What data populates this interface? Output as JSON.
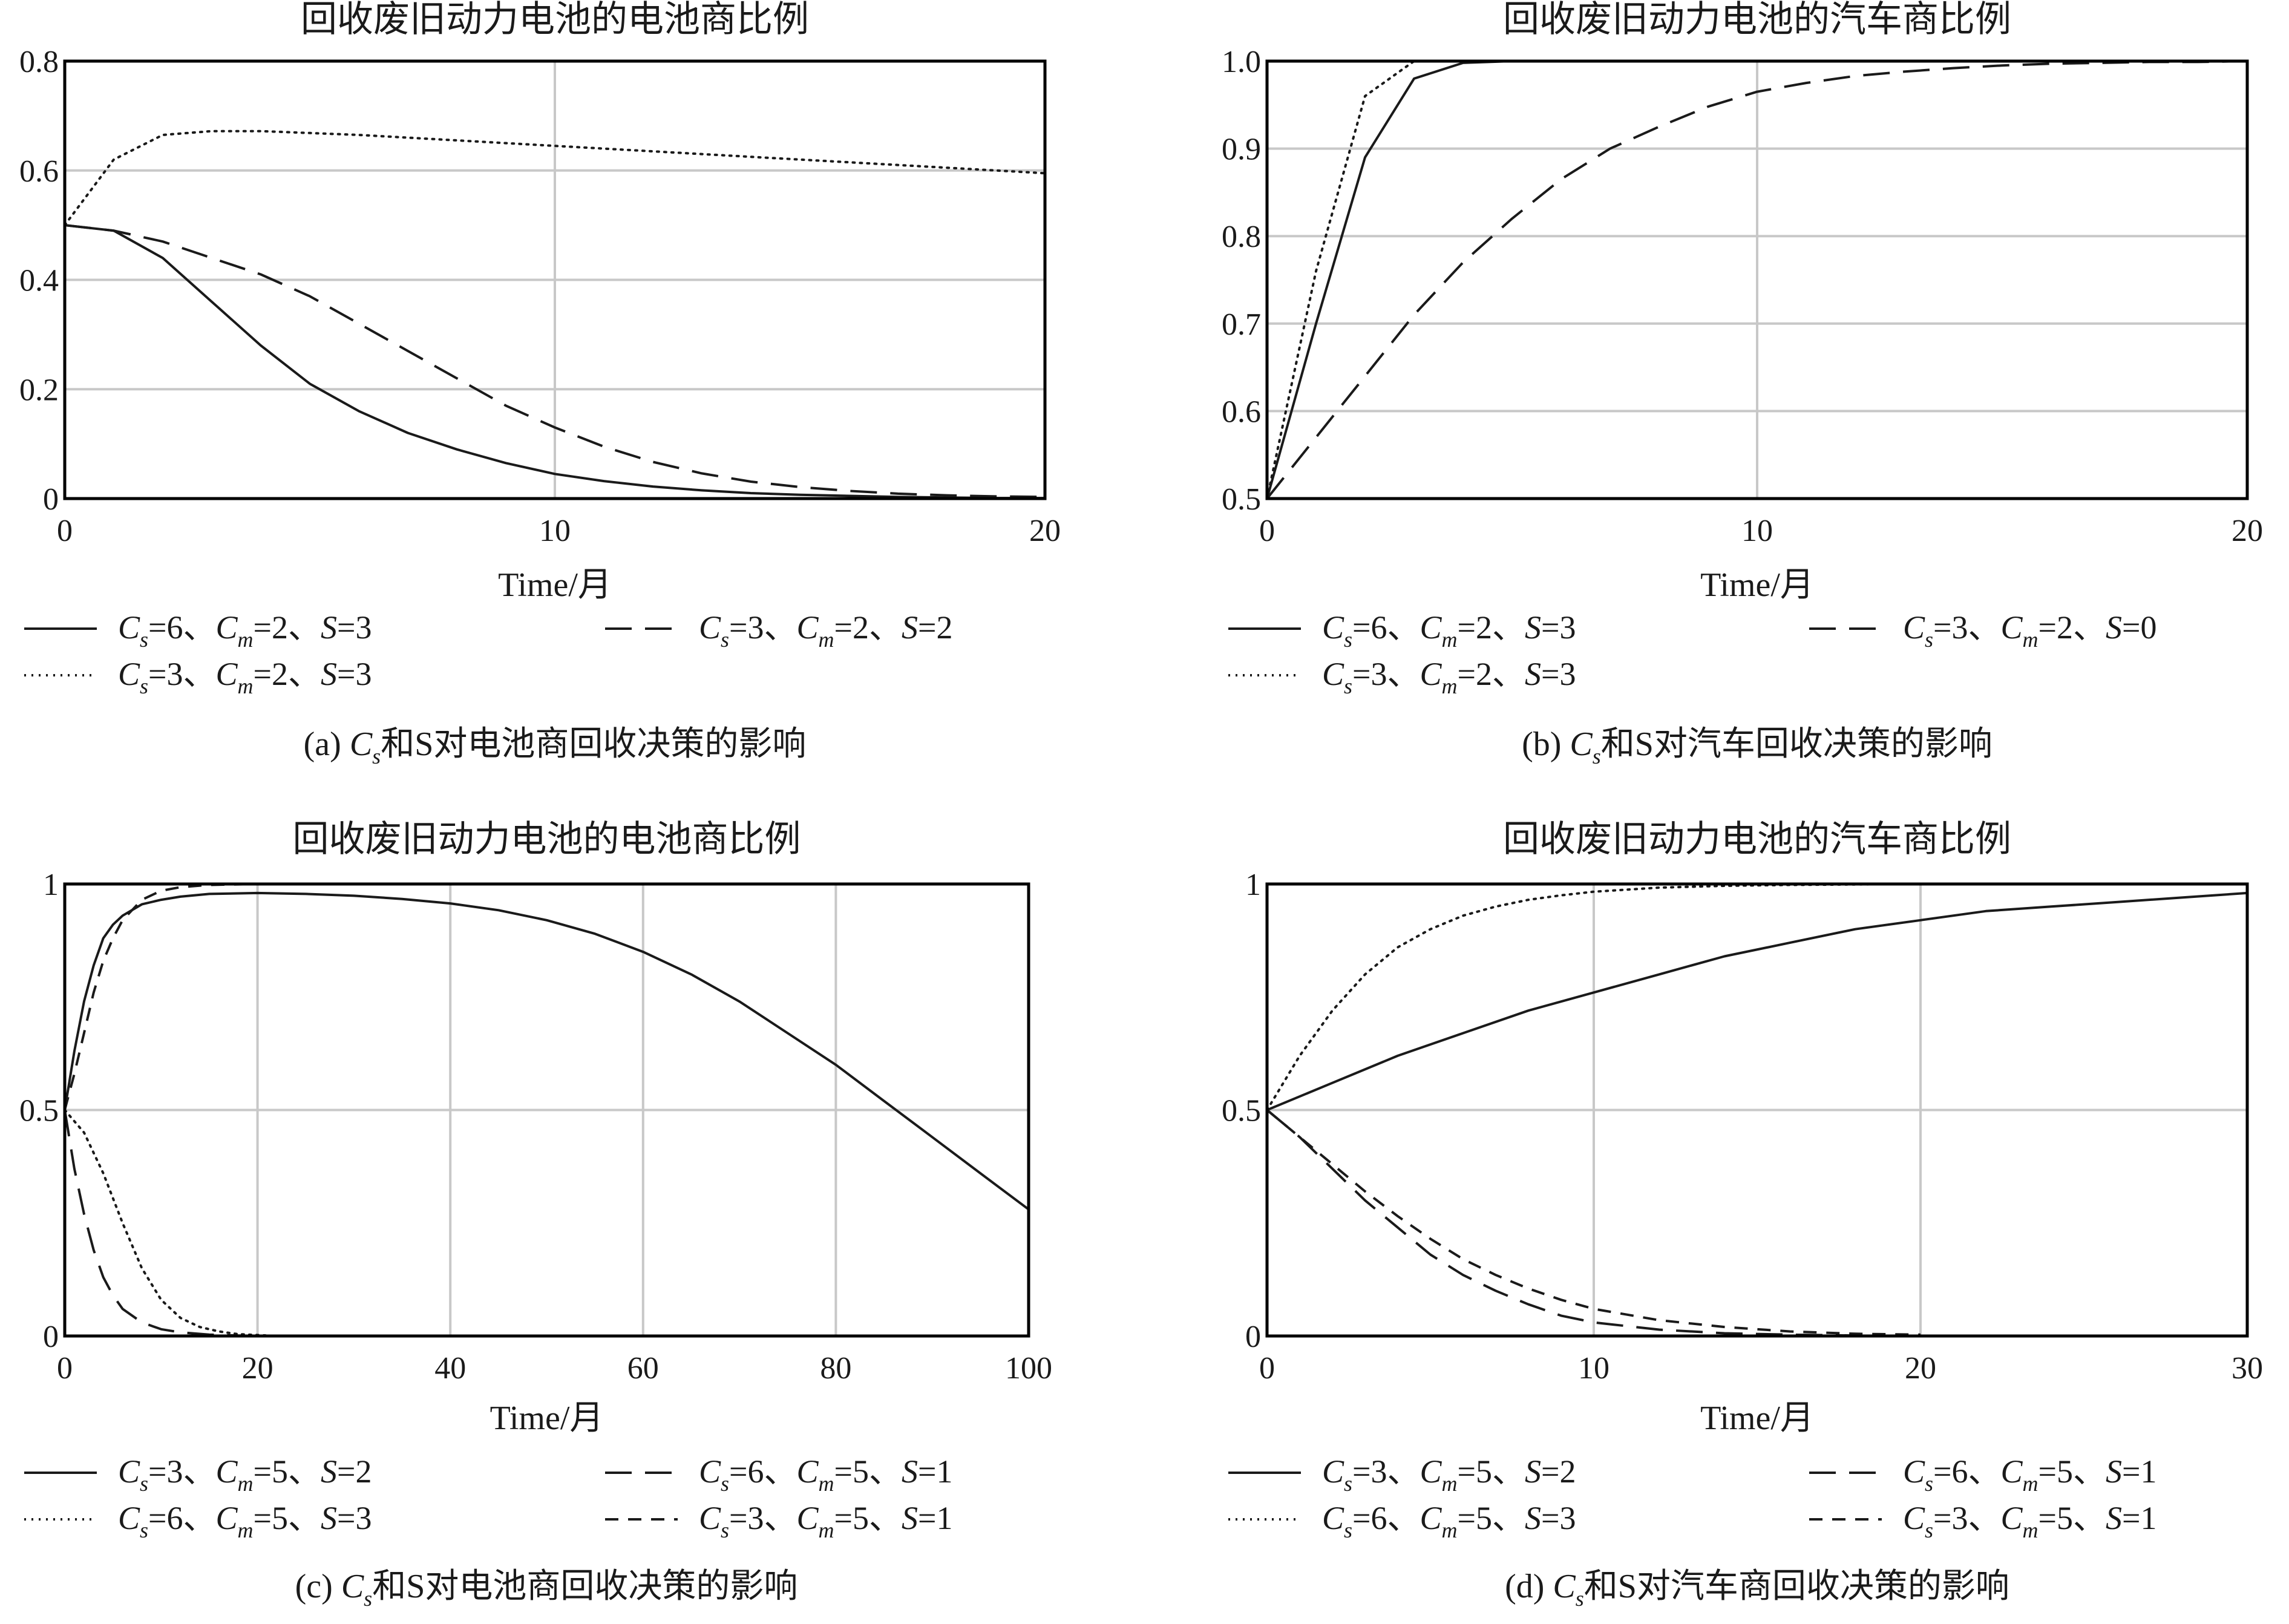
{
  "chart_data": [
    {
      "type": "line",
      "title": "回收废旧动力电池的电池商比例",
      "xlabel": "Time/月",
      "caption": "(a) Cs和S对电池商回收决策的影响",
      "xlim": [
        0,
        20
      ],
      "ylim": [
        0,
        0.8
      ],
      "xticks": [
        0,
        10,
        20
      ],
      "xtick_labels": [
        "0",
        "10",
        "20"
      ],
      "yticks": [
        0,
        0.2,
        0.4,
        0.6,
        0.8
      ],
      "ytick_labels": [
        "0",
        "0.2",
        "0.4",
        "0.6",
        "0.8"
      ],
      "grid": true,
      "legend_position": "bottom",
      "series": [
        {
          "name": "Cs=6、Cm=2、S=3",
          "style": "solid",
          "x": [
            0,
            1,
            2,
            3,
            4,
            5,
            6,
            7,
            8,
            9,
            10,
            11,
            12,
            13,
            14,
            15,
            16,
            17,
            18,
            19,
            20
          ],
          "y": [
            0.5,
            0.49,
            0.44,
            0.36,
            0.28,
            0.21,
            0.16,
            0.12,
            0.09,
            0.065,
            0.045,
            0.032,
            0.022,
            0.015,
            0.01,
            0.007,
            0.005,
            0.003,
            0.002,
            0.001,
            0.001
          ]
        },
        {
          "name": "Cs=3、Cm=2、S=2",
          "style": "longdash",
          "x": [
            0,
            1,
            2,
            3,
            4,
            5,
            6,
            7,
            8,
            9,
            10,
            11,
            12,
            13,
            14,
            15,
            16,
            17,
            18,
            19,
            20
          ],
          "y": [
            0.5,
            0.49,
            0.47,
            0.44,
            0.41,
            0.37,
            0.32,
            0.27,
            0.22,
            0.17,
            0.13,
            0.095,
            0.067,
            0.046,
            0.031,
            0.021,
            0.014,
            0.009,
            0.006,
            0.004,
            0.003
          ]
        },
        {
          "name": "Cs=3、Cm=2、S=3",
          "style": "dotted",
          "x": [
            0,
            1,
            2,
            3,
            4,
            6,
            8,
            10,
            12,
            14,
            16,
            18,
            20
          ],
          "y": [
            0.5,
            0.62,
            0.665,
            0.672,
            0.672,
            0.665,
            0.655,
            0.645,
            0.635,
            0.625,
            0.615,
            0.605,
            0.595
          ]
        }
      ]
    },
    {
      "type": "line",
      "title": "回收废旧动力电池的汽车商比例",
      "xlabel": "Time/月",
      "caption": "(b) Cs和S对汽车回收决策的影响",
      "xlim": [
        0,
        20
      ],
      "ylim": [
        0.5,
        1.0
      ],
      "xticks": [
        0,
        10,
        20
      ],
      "xtick_labels": [
        "0",
        "10",
        "20"
      ],
      "yticks": [
        0.5,
        0.6,
        0.7,
        0.8,
        0.9,
        1.0
      ],
      "ytick_labels": [
        "0.5",
        "0.6",
        "0.7",
        "0.8",
        "0.9",
        "1.0"
      ],
      "grid": true,
      "legend_position": "bottom",
      "series": [
        {
          "name": "Cs=6、Cm=2、S=3",
          "style": "solid",
          "x": [
            0,
            1,
            2,
            3,
            4,
            5,
            20
          ],
          "y": [
            0.5,
            0.7,
            0.89,
            0.98,
            0.998,
            1.0,
            1.0
          ]
        },
        {
          "name": "Cs=3、Cm=2、S=0",
          "style": "longdash",
          "x": [
            0,
            1,
            2,
            3,
            4,
            5,
            6,
            7,
            8,
            9,
            10,
            11,
            12,
            13,
            14,
            15,
            16,
            17,
            18,
            19,
            20
          ],
          "y": [
            0.5,
            0.57,
            0.64,
            0.71,
            0.77,
            0.82,
            0.865,
            0.9,
            0.925,
            0.948,
            0.965,
            0.975,
            0.983,
            0.988,
            0.992,
            0.995,
            0.997,
            0.998,
            0.999,
            0.999,
            1.0
          ]
        },
        {
          "name": "Cs=3、Cm=2、S=3",
          "style": "dotted",
          "x": [
            0,
            1,
            2,
            3,
            20
          ],
          "y": [
            0.5,
            0.76,
            0.96,
            1.0,
            1.0
          ]
        }
      ]
    },
    {
      "type": "line",
      "title": "回收废旧动力电池的电池商比例",
      "xlabel": "Time/月",
      "caption": "(c) Cs和S对电池商回收决策的影响",
      "xlim": [
        0,
        100
      ],
      "ylim": [
        0,
        1
      ],
      "xticks": [
        0,
        20,
        40,
        60,
        80,
        100
      ],
      "xtick_labels": [
        "0",
        "20",
        "40",
        "60",
        "80",
        "100"
      ],
      "yticks": [
        0,
        0.5,
        1
      ],
      "ytick_labels": [
        "0",
        "0.5",
        "1"
      ],
      "grid": true,
      "legend_position": "bottom",
      "series": [
        {
          "name": "Cs=3、Cm=5、S=2",
          "style": "solid",
          "x": [
            0,
            1,
            2,
            3,
            4,
            5,
            6,
            8,
            10,
            12,
            15,
            20,
            25,
            30,
            35,
            40,
            45,
            50,
            55,
            60,
            65,
            70,
            75,
            80,
            85,
            90,
            95,
            100
          ],
          "y": [
            0.5,
            0.63,
            0.74,
            0.82,
            0.88,
            0.91,
            0.93,
            0.955,
            0.965,
            0.972,
            0.978,
            0.98,
            0.978,
            0.974,
            0.967,
            0.957,
            0.942,
            0.92,
            0.89,
            0.85,
            0.8,
            0.74,
            0.67,
            0.6,
            0.52,
            0.44,
            0.36,
            0.28
          ]
        },
        {
          "name": "Cs=6、Cm=5、S=1",
          "style": "longdash",
          "x": [
            0,
            1,
            2,
            3,
            4,
            5,
            6,
            8,
            10,
            12,
            15,
            18,
            20,
            22
          ],
          "y": [
            0.5,
            0.37,
            0.27,
            0.19,
            0.13,
            0.09,
            0.06,
            0.03,
            0.015,
            0.008,
            0.003,
            0.001,
            0.0,
            0.0
          ]
        },
        {
          "name": "Cs=6、Cm=5、S=3",
          "style": "dotted",
          "x": [
            0,
            2,
            4,
            6,
            8,
            10,
            12,
            14,
            16,
            18,
            20,
            22
          ],
          "y": [
            0.5,
            0.45,
            0.36,
            0.25,
            0.15,
            0.08,
            0.04,
            0.02,
            0.01,
            0.004,
            0.002,
            0.0
          ]
        },
        {
          "name": "Cs=3、Cm=5、S=1",
          "style": "dashed",
          "x": [
            0,
            1,
            2,
            3,
            4,
            5,
            6,
            8,
            10,
            12,
            15,
            20,
            100
          ],
          "y": [
            0.5,
            0.58,
            0.67,
            0.76,
            0.83,
            0.88,
            0.92,
            0.965,
            0.985,
            0.993,
            0.998,
            1.0,
            1.0
          ]
        }
      ]
    },
    {
      "type": "line",
      "title": "回收废旧动力电池的汽车商比例",
      "xlabel": "Time/月",
      "caption": "(d) Cs和S对汽车商回收决策的影响",
      "xlim": [
        0,
        30
      ],
      "ylim": [
        0,
        1
      ],
      "xticks": [
        0,
        10,
        20,
        30
      ],
      "xtick_labels": [
        "0",
        "10",
        "20",
        "30"
      ],
      "yticks": [
        0,
        0.5,
        1
      ],
      "ytick_labels": [
        "0",
        "0.5",
        "1"
      ],
      "grid": true,
      "legend_position": "bottom",
      "series": [
        {
          "name": "Cs=3、Cm=5、S=2",
          "style": "solid",
          "x": [
            0,
            2,
            4,
            6,
            8,
            10,
            12,
            14,
            16,
            18,
            20,
            22,
            24,
            26,
            28,
            30
          ],
          "y": [
            0.5,
            0.56,
            0.62,
            0.67,
            0.72,
            0.76,
            0.8,
            0.84,
            0.87,
            0.9,
            0.92,
            0.94,
            0.95,
            0.96,
            0.97,
            0.98
          ]
        },
        {
          "name": "Cs=6、Cm=5、S=1",
          "style": "longdash",
          "x": [
            0,
            1,
            2,
            3,
            4,
            5,
            6,
            7,
            8,
            9,
            10,
            12,
            14,
            16,
            18,
            20
          ],
          "y": [
            0.5,
            0.44,
            0.37,
            0.3,
            0.24,
            0.18,
            0.135,
            0.1,
            0.07,
            0.045,
            0.03,
            0.014,
            0.006,
            0.003,
            0.001,
            0.0
          ]
        },
        {
          "name": "Cs=6、Cm=5、S=3",
          "style": "dotted",
          "x": [
            0,
            1,
            2,
            3,
            4,
            5,
            6,
            7,
            8,
            9,
            10,
            12,
            14,
            16,
            18,
            20,
            30
          ],
          "y": [
            0.5,
            0.62,
            0.72,
            0.8,
            0.86,
            0.9,
            0.93,
            0.95,
            0.965,
            0.975,
            0.983,
            0.992,
            0.996,
            0.998,
            0.999,
            1.0,
            1.0
          ]
        },
        {
          "name": "Cs=3、Cm=5、S=1",
          "style": "dashed",
          "x": [
            0,
            1,
            2,
            3,
            4,
            5,
            6,
            7,
            8,
            9,
            10,
            12,
            14,
            16,
            18,
            20
          ],
          "y": [
            0.5,
            0.44,
            0.38,
            0.32,
            0.265,
            0.215,
            0.17,
            0.135,
            0.105,
            0.08,
            0.06,
            0.035,
            0.02,
            0.01,
            0.005,
            0.003
          ]
        }
      ]
    }
  ]
}
